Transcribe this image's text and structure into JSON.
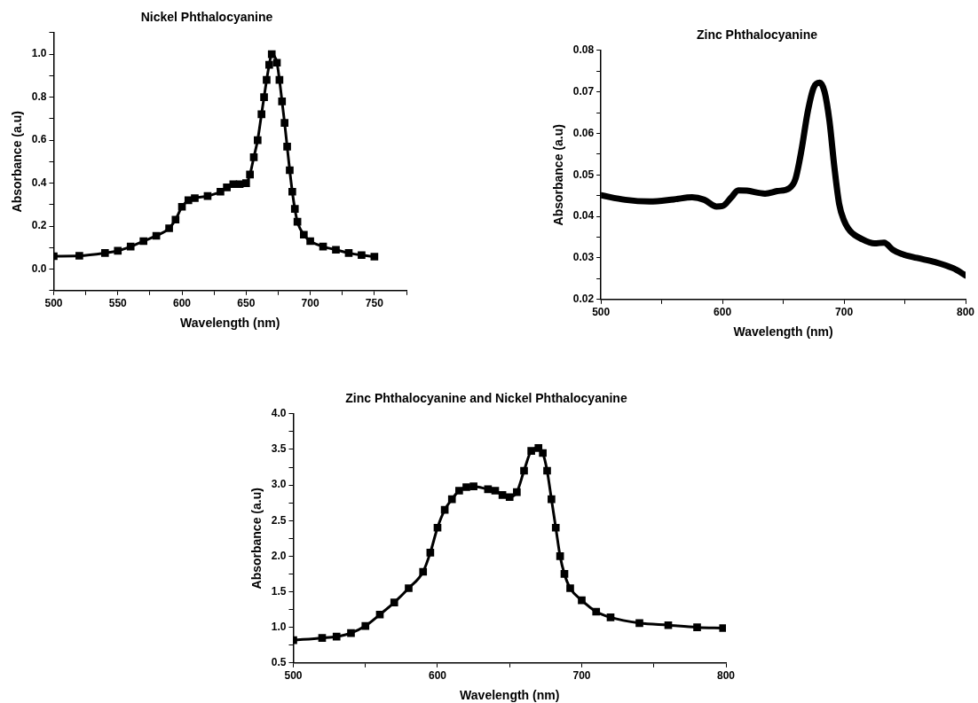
{
  "chart_data": [
    {
      "type": "line",
      "title": "Nickel Phthalocyanine",
      "xlabel": "Wavelength (nm)",
      "ylabel": "Absorbance (a.u)",
      "color": "#000000",
      "marker": "square",
      "x": [
        500,
        520,
        540,
        550,
        560,
        570,
        580,
        590,
        595,
        600,
        605,
        610,
        620,
        630,
        635,
        640,
        645,
        650,
        653,
        656,
        659,
        662,
        664,
        666,
        668,
        670,
        674,
        676,
        678,
        680,
        682,
        684,
        686,
        688,
        690,
        695,
        700,
        710,
        720,
        730,
        740,
        750
      ],
      "values": [
        0.06,
        0.062,
        0.075,
        0.085,
        0.105,
        0.13,
        0.155,
        0.19,
        0.23,
        0.29,
        0.32,
        0.33,
        0.34,
        0.36,
        0.38,
        0.395,
        0.395,
        0.4,
        0.44,
        0.52,
        0.6,
        0.72,
        0.8,
        0.88,
        0.95,
        1.0,
        0.96,
        0.88,
        0.78,
        0.68,
        0.57,
        0.46,
        0.36,
        0.28,
        0.22,
        0.16,
        0.13,
        0.105,
        0.09,
        0.075,
        0.065,
        0.058
      ],
      "xlim": [
        500,
        775
      ],
      "xticks": [
        500,
        {
          "value": 525,
          "label": null
        },
        550,
        {
          "value": 575,
          "label": null
        },
        600,
        {
          "value": 625,
          "label": null
        },
        650,
        {
          "value": 675,
          "label": null
        },
        700,
        {
          "value": 725,
          "label": null
        },
        750,
        {
          "value": 775,
          "label": null
        }
      ],
      "ylim": [
        -0.1,
        1.1
      ],
      "yticks": [
        {
          "value": -0.1,
          "label": null
        },
        {
          "value": 0,
          "label": "0.0"
        },
        {
          "value": 0.1,
          "label": null
        },
        0.2,
        {
          "value": 0.3,
          "label": null
        },
        0.4,
        {
          "value": 0.5,
          "label": null
        },
        0.6,
        {
          "value": 0.7,
          "label": null
        },
        0.8,
        {
          "value": 0.9,
          "label": null
        },
        {
          "value": 1,
          "label": "1.0"
        },
        {
          "value": 1.1,
          "label": null
        }
      ]
    },
    {
      "type": "line",
      "title": "Zinc Phthalocyanine",
      "xlabel": "Wavelength (nm)",
      "ylabel": "Absorbance (a.u)",
      "color": "#000000",
      "x": [
        500,
        520,
        540,
        560,
        575,
        585,
        595,
        600,
        607,
        613,
        620,
        635,
        645,
        655,
        660,
        665,
        670,
        675,
        680,
        684,
        688,
        692,
        696,
        700,
        705,
        715,
        725,
        733,
        740,
        747,
        760,
        775,
        790,
        800
      ],
      "values": [
        0.0451,
        0.044,
        0.0436,
        0.0441,
        0.0446,
        0.044,
        0.0424,
        0.0425,
        0.0445,
        0.0463,
        0.0462,
        0.0455,
        0.0461,
        0.0468,
        0.049,
        0.056,
        0.065,
        0.071,
        0.0722,
        0.07,
        0.063,
        0.052,
        0.043,
        0.039,
        0.0365,
        0.0345,
        0.0335,
        0.0337,
        0.032,
        0.031,
        0.03,
        0.029,
        0.0275,
        0.0258
      ],
      "xlim": [
        500,
        800
      ],
      "xticks": [
        500,
        {
          "value": 550,
          "label": null
        },
        600,
        {
          "value": 650,
          "label": null
        },
        700,
        {
          "value": 750,
          "label": null
        },
        800
      ],
      "ylim": [
        0.02,
        0.08
      ],
      "yticks": [
        0.02,
        {
          "value": 0.025,
          "label": null
        },
        0.03,
        {
          "value": 0.035,
          "label": null
        },
        0.04,
        {
          "value": 0.045,
          "label": null
        },
        0.05,
        {
          "value": 0.055,
          "label": null
        },
        0.06,
        {
          "value": 0.065,
          "label": null
        },
        0.07,
        {
          "value": 0.075,
          "label": null
        },
        0.08
      ]
    },
    {
      "type": "line",
      "title": "Zinc Phthalocyanine and Nickel Phthalocyanine",
      "xlabel": "Wavelength (nm)",
      "ylabel": "Absorbance (a.u)",
      "color": "#000000",
      "marker": "square",
      "x": [
        500,
        520,
        530,
        540,
        550,
        560,
        570,
        580,
        590,
        595,
        600,
        605,
        610,
        615,
        620,
        625,
        635,
        640,
        645,
        650,
        655,
        660,
        665,
        670,
        673,
        676,
        679,
        682,
        685,
        688,
        692,
        700,
        710,
        720,
        740,
        760,
        780,
        798
      ],
      "values": [
        0.82,
        0.85,
        0.87,
        0.92,
        1.02,
        1.18,
        1.35,
        1.55,
        1.78,
        2.05,
        2.4,
        2.65,
        2.8,
        2.92,
        2.97,
        2.98,
        2.94,
        2.92,
        2.86,
        2.83,
        2.9,
        3.2,
        3.48,
        3.52,
        3.45,
        3.2,
        2.8,
        2.4,
        2.0,
        1.75,
        1.55,
        1.38,
        1.22,
        1.14,
        1.06,
        1.03,
        1.0,
        0.99
      ],
      "xlim": [
        500,
        800
      ],
      "xticks": [
        500,
        {
          "value": 550,
          "label": null
        },
        600,
        {
          "value": 650,
          "label": null
        },
        700,
        {
          "value": 750,
          "label": null
        },
        800
      ],
      "ylim": [
        0.5,
        4
      ],
      "yticks": [
        0.5,
        {
          "value": 0.75,
          "label": null
        },
        {
          "value": 1,
          "label": "1.0"
        },
        {
          "value": 1.25,
          "label": null
        },
        1.5,
        {
          "value": 1.75,
          "label": null
        },
        {
          "value": 2,
          "label": "2.0"
        },
        {
          "value": 2.25,
          "label": null
        },
        2.5,
        {
          "value": 2.75,
          "label": null
        },
        {
          "value": 3,
          "label": "3.0"
        },
        {
          "value": 3.25,
          "label": null
        },
        3.5,
        {
          "value": 3.75,
          "label": null
        },
        {
          "value": 4,
          "label": "4.0"
        }
      ]
    }
  ]
}
